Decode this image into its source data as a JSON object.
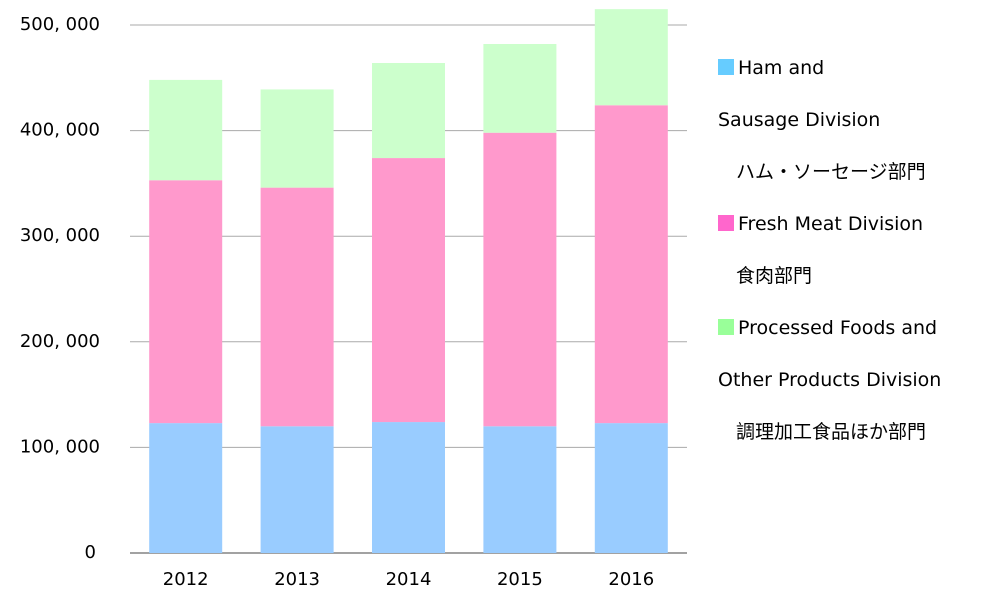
{
  "chart_data": {
    "type": "stacked_bar",
    "categories": [
      "2012",
      "2013",
      "2014",
      "2015",
      "2016"
    ],
    "series": [
      {
        "name": "Ham and\nSausage Division",
        "name_ja": "ハム・ソーセージ部門",
        "color": "#99ccff",
        "legend_color": "#66ccff",
        "values": [
          123000,
          120000,
          124000,
          120000,
          123000
        ]
      },
      {
        "name": "Fresh Meat Division",
        "name_ja": "食肉部門",
        "color": "#ff99cc",
        "legend_color": "#ff66cc",
        "values": [
          230000,
          226000,
          250000,
          278000,
          301000
        ]
      },
      {
        "name": "Processed Foods and\nOther Products Division",
        "name_ja": "調理加工食品ほか部門",
        "color": "#ccffcc",
        "legend_color": "#99ff99",
        "values": [
          95000,
          93000,
          90000,
          84000,
          91000
        ]
      }
    ],
    "ylim": [
      0,
      500000
    ],
    "yticks": [
      0,
      {
        "value": 100000,
        "label": "100, 000"
      },
      {
        "value": 200000,
        "label": "200, 000"
      },
      {
        "value": 300000,
        "label": "300, 000"
      },
      {
        "value": 400000,
        "label": "400, 000"
      },
      {
        "value": 500000,
        "label": "500, 000"
      }
    ],
    "grid": true,
    "legend": "right"
  }
}
